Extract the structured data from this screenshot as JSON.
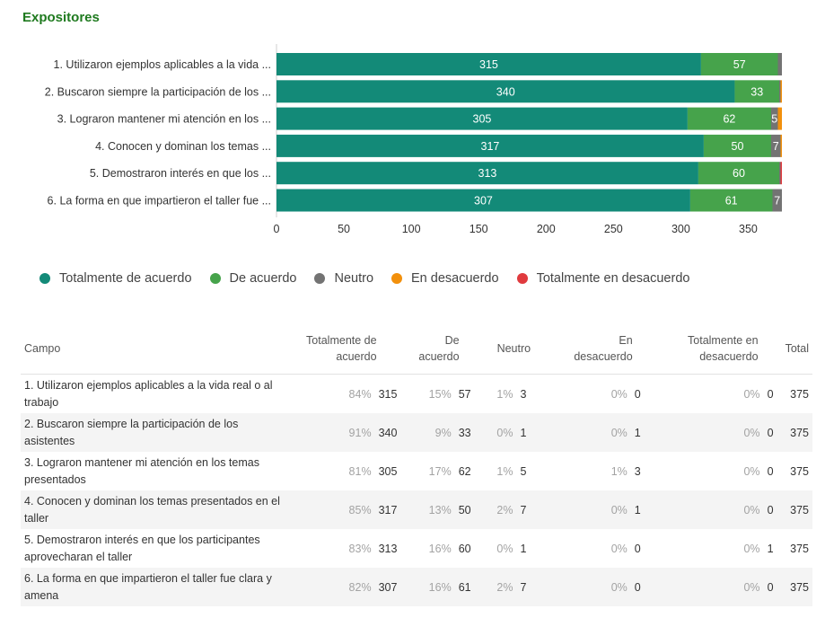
{
  "title": "Expositores",
  "colors": {
    "totalmente_de_acuerdo": "#138a78",
    "de_acuerdo": "#46a34b",
    "neutro": "#737373",
    "en_desacuerdo": "#f2900c",
    "totalmente_en_desacuerdo": "#e03a3e"
  },
  "chart_data": {
    "type": "bar",
    "orientation": "horizontal",
    "stacked": true,
    "categories": [
      "1. Utilizaron ejemplos aplicables a la vida ...",
      "2. Buscaron siempre la participación de los ...",
      "3. Lograron mantener mi atención en los ...",
      "4. Conocen y dominan los temas ...",
      "5. Demostraron interés en que los ...",
      "6. La forma en que impartieron el taller fue ..."
    ],
    "series": [
      {
        "name": "Totalmente de acuerdo",
        "values": [
          315,
          340,
          305,
          317,
          313,
          307
        ]
      },
      {
        "name": "De acuerdo",
        "values": [
          57,
          33,
          62,
          50,
          60,
          61
        ]
      },
      {
        "name": "Neutro",
        "values": [
          3,
          1,
          5,
          7,
          1,
          7
        ]
      },
      {
        "name": "En desacuerdo",
        "values": [
          0,
          1,
          3,
          1,
          0,
          0
        ]
      },
      {
        "name": "Totalmente en desacuerdo",
        "values": [
          0,
          0,
          0,
          0,
          1,
          0
        ]
      }
    ],
    "xlim": [
      0,
      375
    ],
    "xticks": [
      0,
      50,
      100,
      150,
      200,
      250,
      300,
      350
    ],
    "grid": false,
    "legend_position": "bottom"
  },
  "legend": [
    {
      "label": "Totalmente de acuerdo",
      "color": "#138a78"
    },
    {
      "label": "De acuerdo",
      "color": "#46a34b"
    },
    {
      "label": "Neutro",
      "color": "#737373"
    },
    {
      "label": "En desacuerdo",
      "color": "#f2900c"
    },
    {
      "label": "Totalmente en desacuerdo",
      "color": "#e03a3e"
    }
  ],
  "table": {
    "headers": {
      "campo": "Campo",
      "totalmente_de_acuerdo": "Totalmente de acuerdo",
      "de_acuerdo": "De acuerdo",
      "neutro": "Neutro",
      "en_desacuerdo": "En desacuerdo",
      "totalmente_en_desacuerdo": "Totalmente en desacuerdo",
      "total": "Total"
    },
    "rows": [
      {
        "campo": "1. Utilizaron ejemplos aplicables a la vida real o al trabajo",
        "tda_pct": "84%",
        "tda": "315",
        "da_pct": "15%",
        "da": "57",
        "n_pct": "1%",
        "n": "3",
        "ed_pct": "0%",
        "ed": "0",
        "ted_pct": "0%",
        "ted": "0",
        "total": "375"
      },
      {
        "campo": "2. Buscaron siempre la participación de los asistentes",
        "tda_pct": "91%",
        "tda": "340",
        "da_pct": "9%",
        "da": "33",
        "n_pct": "0%",
        "n": "1",
        "ed_pct": "0%",
        "ed": "1",
        "ted_pct": "0%",
        "ted": "0",
        "total": "375"
      },
      {
        "campo": "3. Lograron mantener mi atención en los temas presentados",
        "tda_pct": "81%",
        "tda": "305",
        "da_pct": "17%",
        "da": "62",
        "n_pct": "1%",
        "n": "5",
        "ed_pct": "1%",
        "ed": "3",
        "ted_pct": "0%",
        "ted": "0",
        "total": "375"
      },
      {
        "campo": "4. Conocen y dominan los temas presentados en el taller",
        "tda_pct": "85%",
        "tda": "317",
        "da_pct": "13%",
        "da": "50",
        "n_pct": "2%",
        "n": "7",
        "ed_pct": "0%",
        "ed": "1",
        "ted_pct": "0%",
        "ted": "0",
        "total": "375"
      },
      {
        "campo": "5. Demostraron interés en que los participantes aprovecharan el taller",
        "tda_pct": "83%",
        "tda": "313",
        "da_pct": "16%",
        "da": "60",
        "n_pct": "0%",
        "n": "1",
        "ed_pct": "0%",
        "ed": "0",
        "ted_pct": "0%",
        "ted": "1",
        "total": "375"
      },
      {
        "campo": "6. La forma en que impartieron el taller fue clara y amena",
        "tda_pct": "82%",
        "tda": "307",
        "da_pct": "16%",
        "da": "61",
        "n_pct": "2%",
        "n": "7",
        "ed_pct": "0%",
        "ed": "0",
        "ted_pct": "0%",
        "ted": "0",
        "total": "375"
      }
    ]
  }
}
